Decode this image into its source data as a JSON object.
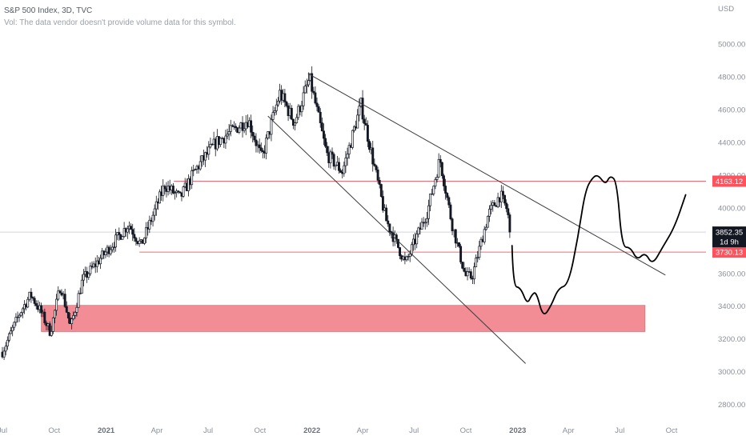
{
  "legend": {
    "symbol_line": "S&P 500 Index, 3D, TVC",
    "volume_note": "Vol: The data vendor doesn't provide volume data for this symbol."
  },
  "chart_data": {
    "type": "candlestick",
    "title": "S&P 500 Index, 3D, TVC",
    "currency": "USD",
    "y_range": [
      2720,
      5220
    ],
    "y_ticks": [
      2800,
      3000,
      3200,
      3400,
      3600,
      3800,
      4000,
      4200,
      4400,
      4600,
      4800,
      5000
    ],
    "y_tick_labels": [
      "2800.00",
      "3000.00",
      "3200.00",
      "3400.00",
      "3600.00",
      "3800.00",
      "4000.00",
      "4200.00",
      "4400.00",
      "4600.00",
      "4800.00",
      "5000.00"
    ],
    "x_range": [
      "2020-07-01",
      "2023-12-01"
    ],
    "x_ticks": [
      {
        "date": "2020-07-01",
        "label": "Jul",
        "bold": false
      },
      {
        "date": "2020-10-01",
        "label": "Oct",
        "bold": false
      },
      {
        "date": "2021-01-01",
        "label": "2021",
        "bold": true
      },
      {
        "date": "2021-04-01",
        "label": "Apr",
        "bold": false
      },
      {
        "date": "2021-07-01",
        "label": "Jul",
        "bold": false
      },
      {
        "date": "2021-10-01",
        "label": "Oct",
        "bold": false
      },
      {
        "date": "2022-01-01",
        "label": "2022",
        "bold": true
      },
      {
        "date": "2022-04-01",
        "label": "Apr",
        "bold": false
      },
      {
        "date": "2022-07-01",
        "label": "Jul",
        "bold": false
      },
      {
        "date": "2022-10-01",
        "label": "Oct",
        "bold": false
      },
      {
        "date": "2023-01-01",
        "label": "2023",
        "bold": true
      },
      {
        "date": "2023-04-01",
        "label": "Apr",
        "bold": false
      },
      {
        "date": "2023-07-01",
        "label": "Jul",
        "bold": false
      },
      {
        "date": "2023-10-01",
        "label": "Oct",
        "bold": false
      }
    ],
    "price_path": [
      [
        "2020-07-01",
        3120
      ],
      [
        "2020-08-01",
        3360
      ],
      [
        "2020-08-20",
        3470
      ],
      [
        "2020-09-05",
        3380
      ],
      [
        "2020-09-24",
        3240
      ],
      [
        "2020-10-12",
        3530
      ],
      [
        "2020-10-30",
        3270
      ],
      [
        "2020-11-20",
        3560
      ],
      [
        "2021-01-05",
        3750
      ],
      [
        "2021-02-10",
        3900
      ],
      [
        "2021-03-04",
        3770
      ],
      [
        "2021-04-15",
        4140
      ],
      [
        "2021-05-12",
        4060
      ],
      [
        "2021-06-10",
        4240
      ],
      [
        "2021-07-15",
        4400
      ],
      [
        "2021-08-25",
        4500
      ],
      [
        "2021-09-10",
        4540
      ],
      [
        "2021-10-04",
        4300
      ],
      [
        "2021-11-05",
        4700
      ],
      [
        "2021-12-01",
        4520
      ],
      [
        "2021-12-28",
        4790
      ],
      [
        "2022-01-27",
        4330
      ],
      [
        "2022-02-24",
        4220
      ],
      [
        "2022-03-29",
        4630
      ],
      [
        "2022-05-12",
        3930
      ],
      [
        "2022-06-16",
        3660
      ],
      [
        "2022-07-25",
        3980
      ],
      [
        "2022-08-16",
        4300
      ],
      [
        "2022-09-06",
        3910
      ],
      [
        "2022-09-30",
        3585
      ],
      [
        "2022-10-12",
        3577
      ],
      [
        "2022-11-10",
        3960
      ],
      [
        "2022-12-01",
        4080
      ],
      [
        "2022-12-13",
        3990
      ],
      [
        "2022-12-20",
        3852
      ]
    ],
    "current_price": 3852.35,
    "countdown": "1d 9h",
    "horizontal_levels": [
      {
        "price": 4163.12,
        "label": "4163.12",
        "from": "2021-05-01"
      },
      {
        "price": 3730.13,
        "label": "3730.13",
        "from": "2021-03-01"
      }
    ],
    "support_zone": {
      "from": "2020-09-08",
      "to": "2023-08-15",
      "low": 3245,
      "high": 3405
    },
    "trendlines": [
      {
        "name": "upper",
        "from": [
          "2021-12-25",
          4820
        ],
        "to": [
          "2023-09-20",
          3590
        ]
      },
      {
        "name": "lower",
        "from": [
          "2021-10-15",
          4560
        ],
        "to": [
          "2023-01-15",
          3050
        ]
      }
    ],
    "projection_path": [
      [
        "2022-12-22",
        3770
      ],
      [
        "2022-12-24",
        3520
      ],
      [
        "2023-01-06",
        3515
      ],
      [
        "2023-01-18",
        3410
      ],
      [
        "2023-01-26",
        3470
      ],
      [
        "2023-02-03",
        3490
      ],
      [
        "2023-02-15",
        3330
      ],
      [
        "2023-03-01",
        3400
      ],
      [
        "2023-03-14",
        3510
      ],
      [
        "2023-04-01",
        3530
      ],
      [
        "2023-04-18",
        3820
      ],
      [
        "2023-05-01",
        4110
      ],
      [
        "2023-05-15",
        4190
      ],
      [
        "2023-05-24",
        4200
      ],
      [
        "2023-06-06",
        4140
      ],
      [
        "2023-06-14",
        4200
      ],
      [
        "2023-06-26",
        4160
      ],
      [
        "2023-07-05",
        3760
      ],
      [
        "2023-07-20",
        3760
      ],
      [
        "2023-08-01",
        3680
      ],
      [
        "2023-08-15",
        3730
      ],
      [
        "2023-08-28",
        3650
      ],
      [
        "2023-09-15",
        3760
      ],
      [
        "2023-10-06",
        3880
      ],
      [
        "2023-10-26",
        4080
      ]
    ],
    "colors": {
      "candle": "#131722",
      "level_line": "#f06a75",
      "level_badge": "#ff525d",
      "zone_fill": "#f28c95",
      "zone_border": "#c95c66",
      "price_badge": "#131722",
      "axis_text": "#8a9099",
      "trendline": "#3a3a3a",
      "projection": "#000000"
    }
  }
}
